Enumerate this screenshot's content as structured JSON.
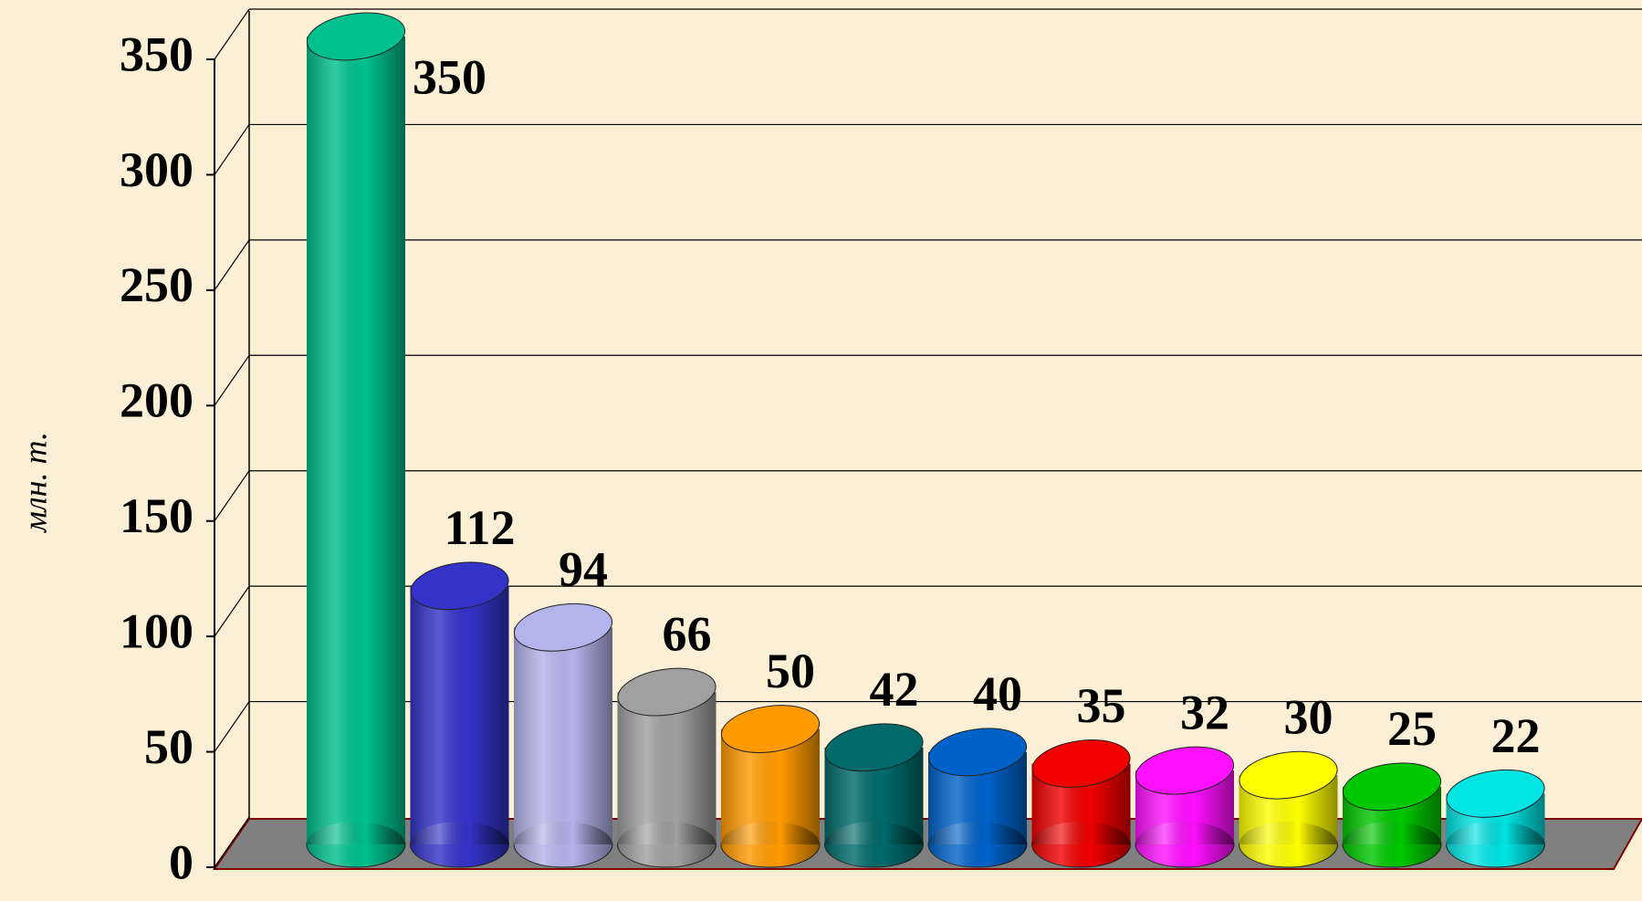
{
  "chart_data": {
    "type": "bar",
    "y_label": "млн. т.",
    "categories": [
      null,
      null,
      null,
      null,
      null,
      null,
      null,
      null,
      null,
      null,
      null,
      null
    ],
    "values": [
      350,
      112,
      94,
      66,
      50,
      42,
      40,
      35,
      32,
      30,
      25,
      22
    ],
    "colors": [
      "#00c08e",
      "#3333c8",
      "#b4b4ec",
      "#a0a0a0",
      "#ff9a00",
      "#006a6a",
      "#0062c8",
      "#f00000",
      "#ff10ff",
      "#ffff00",
      "#00c800",
      "#00e4e4"
    ],
    "ylim": [
      0,
      350
    ],
    "yticks": [
      0,
      50,
      100,
      150,
      200,
      250,
      300,
      350
    ],
    "grid": true
  }
}
